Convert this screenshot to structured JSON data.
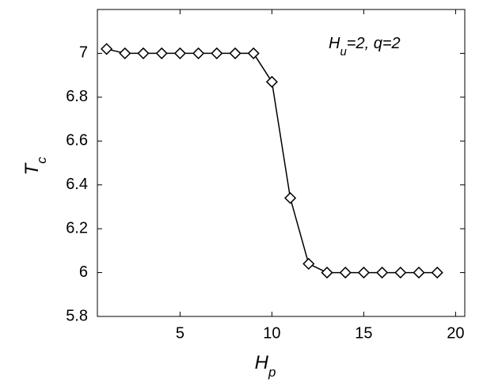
{
  "chart_data": {
    "type": "line",
    "x": [
      1,
      2,
      3,
      4,
      5,
      6,
      7,
      8,
      9,
      10,
      11,
      12,
      13,
      14,
      15,
      16,
      17,
      18,
      19
    ],
    "series": [
      {
        "color": "#000000",
        "marker": "diamond",
        "values": [
          7.02,
          7,
          7,
          7,
          7,
          7,
          7,
          7,
          7,
          6.87,
          6.34,
          6.04,
          6,
          6,
          6,
          6,
          6,
          6,
          6
        ]
      }
    ],
    "xlim": [
      0.5,
      20.5
    ],
    "xticks": [
      5,
      10,
      15,
      20
    ],
    "ylim": [
      5.8,
      7.2
    ],
    "yticks": [
      5.8,
      6,
      6.2,
      6.4,
      6.6,
      6.8,
      7
    ],
    "xlabel": {
      "main": "H",
      "sub": "p"
    },
    "ylabel": {
      "main": "T",
      "sub": "c"
    },
    "annotation": {
      "main": "H",
      "sub": "u",
      "rest": "=2, q=2"
    },
    "grid": false
  }
}
